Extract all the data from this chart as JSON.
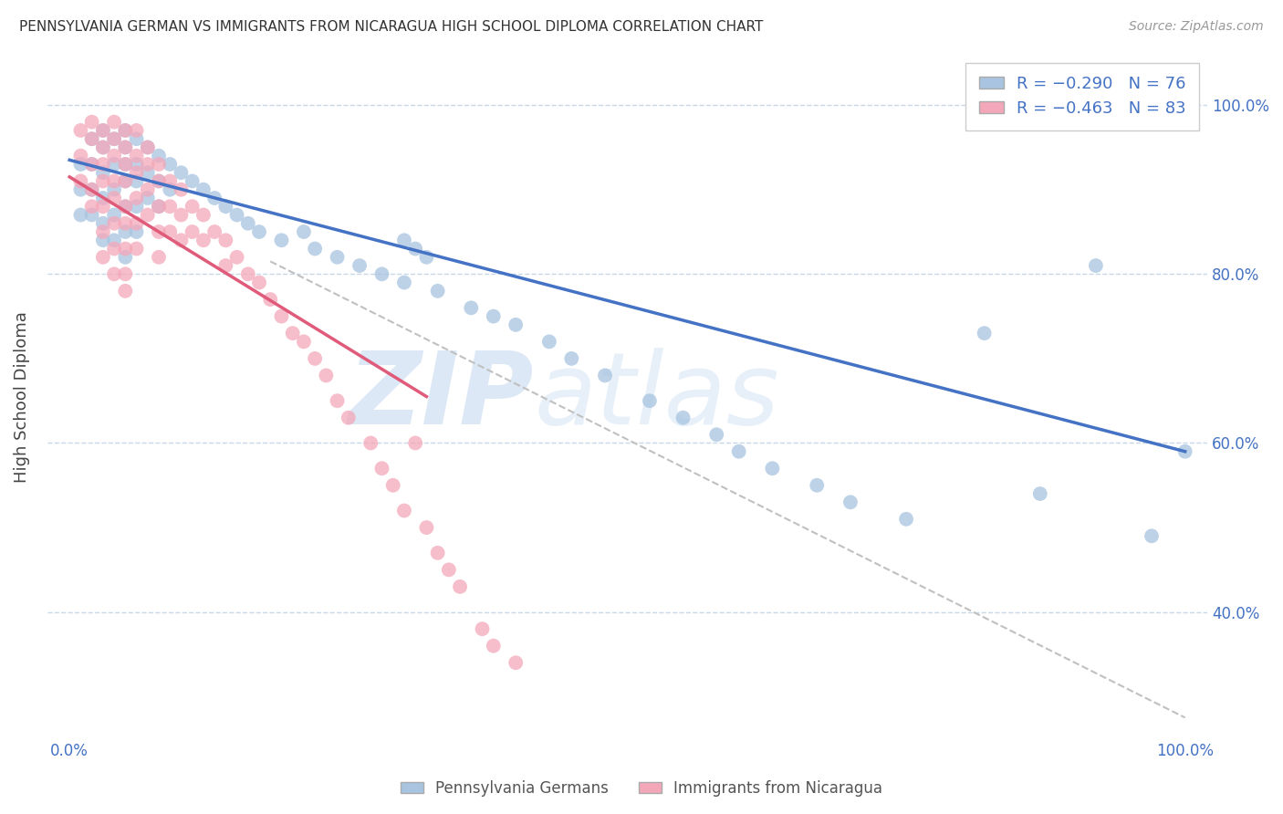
{
  "title": "PENNSYLVANIA GERMAN VS IMMIGRANTS FROM NICARAGUA HIGH SCHOOL DIPLOMA CORRELATION CHART",
  "source": "Source: ZipAtlas.com",
  "ylabel": "High School Diploma",
  "blue_color": "#a8c4e0",
  "blue_line_color": "#4472c4",
  "pink_color": "#f4a7b9",
  "pink_line_color": "#e05a7a",
  "background_color": "#ffffff",
  "grid_color": "#c8d8e8",
  "tick_label_color": "#4472c4",
  "ylim": [
    0.25,
    1.06
  ],
  "xlim": [
    -0.02,
    1.02
  ],
  "blue_line_x0": 0.0,
  "blue_line_y0": 0.935,
  "blue_line_x1": 1.0,
  "blue_line_y1": 0.59,
  "pink_line_x0": 0.0,
  "pink_line_y0": 0.915,
  "pink_line_x1": 0.32,
  "pink_line_y1": 0.655,
  "dashed_line_x0": 0.18,
  "dashed_line_y0": 0.815,
  "dashed_line_x1": 1.0,
  "dashed_line_y1": 0.275,
  "right_ytick_labels": [
    "100.0%",
    "80.0%",
    "60.0%",
    "40.0%"
  ],
  "right_ytick_values": [
    1.0,
    0.8,
    0.6,
    0.4
  ],
  "bottom_legend": [
    "Pennsylvania Germans",
    "Immigrants from Nicaragua"
  ],
  "bottom_legend_colors": [
    "#a8c4e0",
    "#f4a7b9"
  ],
  "blue_scatter_x": [
    0.01,
    0.01,
    0.01,
    0.02,
    0.02,
    0.02,
    0.02,
    0.03,
    0.03,
    0.03,
    0.03,
    0.03,
    0.03,
    0.04,
    0.04,
    0.04,
    0.04,
    0.04,
    0.05,
    0.05,
    0.05,
    0.05,
    0.05,
    0.05,
    0.05,
    0.06,
    0.06,
    0.06,
    0.06,
    0.06,
    0.07,
    0.07,
    0.07,
    0.08,
    0.08,
    0.08,
    0.09,
    0.09,
    0.1,
    0.11,
    0.12,
    0.13,
    0.14,
    0.15,
    0.16,
    0.17,
    0.19,
    0.21,
    0.22,
    0.24,
    0.26,
    0.28,
    0.3,
    0.33,
    0.36,
    0.38,
    0.3,
    0.31,
    0.32,
    0.4,
    0.43,
    0.45,
    0.48,
    0.52,
    0.55,
    0.58,
    0.6,
    0.63,
    0.67,
    0.7,
    0.75,
    0.82,
    0.87,
    0.92,
    0.97,
    1.0
  ],
  "blue_scatter_y": [
    0.93,
    0.9,
    0.87,
    0.96,
    0.93,
    0.9,
    0.87,
    0.97,
    0.95,
    0.92,
    0.89,
    0.86,
    0.84,
    0.96,
    0.93,
    0.9,
    0.87,
    0.84,
    0.97,
    0.95,
    0.93,
    0.91,
    0.88,
    0.85,
    0.82,
    0.96,
    0.93,
    0.91,
    0.88,
    0.85,
    0.95,
    0.92,
    0.89,
    0.94,
    0.91,
    0.88,
    0.93,
    0.9,
    0.92,
    0.91,
    0.9,
    0.89,
    0.88,
    0.87,
    0.86,
    0.85,
    0.84,
    0.85,
    0.83,
    0.82,
    0.81,
    0.8,
    0.79,
    0.78,
    0.76,
    0.75,
    0.84,
    0.83,
    0.82,
    0.74,
    0.72,
    0.7,
    0.68,
    0.65,
    0.63,
    0.61,
    0.59,
    0.57,
    0.55,
    0.53,
    0.51,
    0.73,
    0.54,
    0.81,
    0.49,
    0.59
  ],
  "pink_scatter_x": [
    0.01,
    0.01,
    0.01,
    0.02,
    0.02,
    0.02,
    0.02,
    0.02,
    0.03,
    0.03,
    0.03,
    0.03,
    0.03,
    0.03,
    0.03,
    0.04,
    0.04,
    0.04,
    0.04,
    0.04,
    0.04,
    0.04,
    0.04,
    0.05,
    0.05,
    0.05,
    0.05,
    0.05,
    0.05,
    0.05,
    0.05,
    0.05,
    0.06,
    0.06,
    0.06,
    0.06,
    0.06,
    0.06,
    0.07,
    0.07,
    0.07,
    0.07,
    0.08,
    0.08,
    0.08,
    0.08,
    0.08,
    0.09,
    0.09,
    0.09,
    0.1,
    0.1,
    0.1,
    0.11,
    0.11,
    0.12,
    0.12,
    0.13,
    0.14,
    0.14,
    0.15,
    0.16,
    0.17,
    0.18,
    0.19,
    0.2,
    0.21,
    0.22,
    0.23,
    0.24,
    0.25,
    0.27,
    0.28,
    0.29,
    0.3,
    0.31,
    0.32,
    0.33,
    0.34,
    0.35,
    0.37,
    0.38,
    0.4
  ],
  "pink_scatter_y": [
    0.97,
    0.94,
    0.91,
    0.98,
    0.96,
    0.93,
    0.9,
    0.88,
    0.97,
    0.95,
    0.93,
    0.91,
    0.88,
    0.85,
    0.82,
    0.98,
    0.96,
    0.94,
    0.91,
    0.89,
    0.86,
    0.83,
    0.8,
    0.97,
    0.95,
    0.93,
    0.91,
    0.88,
    0.86,
    0.83,
    0.8,
    0.78,
    0.97,
    0.94,
    0.92,
    0.89,
    0.86,
    0.83,
    0.95,
    0.93,
    0.9,
    0.87,
    0.93,
    0.91,
    0.88,
    0.85,
    0.82,
    0.91,
    0.88,
    0.85,
    0.9,
    0.87,
    0.84,
    0.88,
    0.85,
    0.87,
    0.84,
    0.85,
    0.84,
    0.81,
    0.82,
    0.8,
    0.79,
    0.77,
    0.75,
    0.73,
    0.72,
    0.7,
    0.68,
    0.65,
    0.63,
    0.6,
    0.57,
    0.55,
    0.52,
    0.6,
    0.5,
    0.47,
    0.45,
    0.43,
    0.38,
    0.36,
    0.34
  ]
}
